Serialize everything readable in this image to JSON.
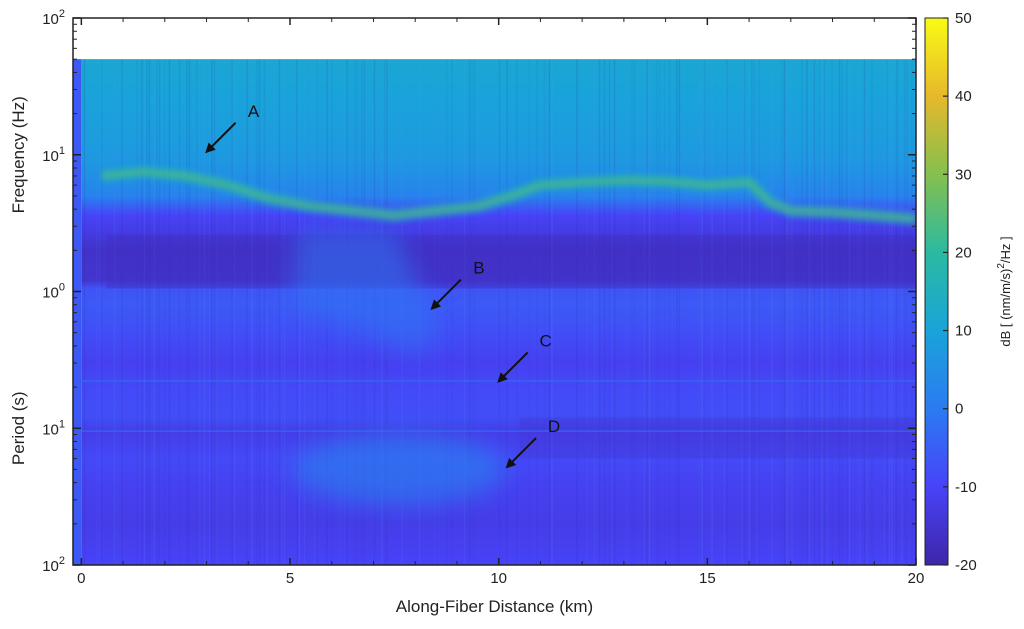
{
  "chart_data": {
    "type": "heatmap",
    "title": "",
    "xlabel": "Along-Fiber Distance (km)",
    "ylabel_upper": "Frequency (Hz)",
    "ylabel_lower": "Period (s)",
    "xlim": [
      -0.2,
      20
    ],
    "x_ticks": [
      0,
      5,
      10,
      15,
      20
    ],
    "x_tick_labels": [
      "0",
      "5",
      "10",
      "15",
      "20"
    ],
    "y_scale": "log",
    "y_ticks_left": [
      {
        "value": 100,
        "unit": "Hz",
        "base": "10",
        "exp": "2"
      },
      {
        "value": 10,
        "unit": "Hz",
        "base": "10",
        "exp": "1"
      },
      {
        "value": 1,
        "unit": "Hz",
        "base": "10",
        "exp": "0"
      },
      {
        "value": 0.1,
        "unit": "Hz",
        "base": "10",
        "exp": "1",
        "label_meaning": "period 10 s"
      },
      {
        "value": 0.01,
        "unit": "Hz",
        "base": "10",
        "exp": "2",
        "label_meaning": "period 100 s"
      }
    ],
    "ylim_hz": [
      0.01,
      100
    ],
    "data_upper_limit_hz": 50,
    "colorbar": {
      "label": "dB [ (nm/m/s)²/Hz ]",
      "label_parts": {
        "prefix": "dB [ (nm/m/s)",
        "sup": "2",
        "suffix": "/Hz ]"
      },
      "range": [
        -20,
        50
      ],
      "ticks": [
        50,
        40,
        30,
        20,
        10,
        0,
        -10,
        -20
      ],
      "colormap": "parula",
      "colormap_stops": [
        "#3e26a8",
        "#4743f8",
        "#2b7bf2",
        "#19a4d9",
        "#2bbaa0",
        "#85c04e",
        "#e6b82b",
        "#f9fb15"
      ]
    },
    "features": {
      "band_A_frequency_hz": [
        [
          0.5,
          7.0
        ],
        [
          1.5,
          7.5
        ],
        [
          2.5,
          7.0
        ],
        [
          3.5,
          6.0
        ],
        [
          4.5,
          4.8
        ],
        [
          5.5,
          4.2
        ],
        [
          6.5,
          3.9
        ],
        [
          7.5,
          3.6
        ],
        [
          8.5,
          3.9
        ],
        [
          9.5,
          4.2
        ],
        [
          10.3,
          5.0
        ],
        [
          11.0,
          6.0
        ],
        [
          12.0,
          6.3
        ],
        [
          13.0,
          6.5
        ],
        [
          14.0,
          6.4
        ],
        [
          15.0,
          6.0
        ],
        [
          16.0,
          6.3
        ],
        [
          16.5,
          4.5
        ],
        [
          17.0,
          3.9
        ],
        [
          18.0,
          3.8
        ],
        [
          19.0,
          3.6
        ],
        [
          20.0,
          3.4
        ]
      ],
      "dark_band_hz": [
        1.05,
        2.6
      ],
      "hline_period_s": [
        4.5,
        10.5
      ]
    },
    "annotations": [
      {
        "label": "A",
        "x": 3.0,
        "hz": 10.5
      },
      {
        "label": "B",
        "x": 8.4,
        "hz": 0.75
      },
      {
        "label": "C",
        "x": 10.0,
        "hz": 0.22
      },
      {
        "label": "D",
        "x": 10.2,
        "hz": 0.052
      }
    ]
  }
}
